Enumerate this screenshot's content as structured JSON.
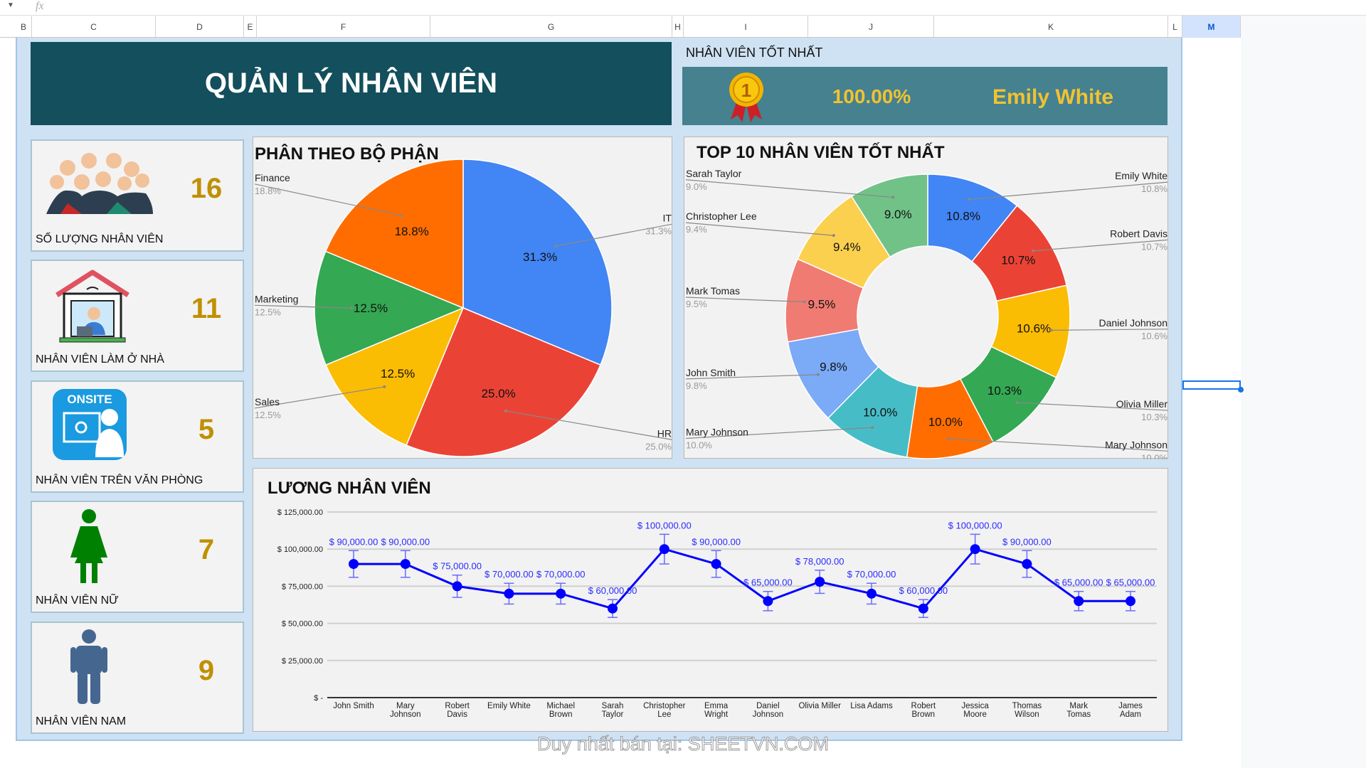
{
  "formula_bar": {
    "fx_label": "fx"
  },
  "columns": [
    "B",
    "C",
    "D",
    "E",
    "F",
    "G",
    "H",
    "I",
    "J",
    "K",
    "L",
    "M"
  ],
  "selected_column": "M",
  "header": {
    "title": "QUẢN LÝ NHÂN VIÊN"
  },
  "best_employee": {
    "label": "NHÂN VIÊN TỐT NHẤT",
    "percent": "100.00%",
    "name": "Emily White",
    "icon": "medal-icon"
  },
  "cards": [
    {
      "value": "16",
      "label": "SỐ LƯỢNG NHÂN VIÊN",
      "icon": "people-group-icon"
    },
    {
      "value": "11",
      "label": "NHÂN VIÊN LÀM Ở NHÀ",
      "icon": "work-from-home-icon"
    },
    {
      "value": "5",
      "label": "NHÂN VIÊN TRÊN VĂN PHÒNG",
      "icon": "onsite-icon",
      "icon_text": "ONSITE"
    },
    {
      "value": "7",
      "label": "NHÂN VIÊN NỮ",
      "icon": "female-icon"
    },
    {
      "value": "9",
      "label": "NHÂN VIÊN NAM",
      "icon": "male-icon"
    }
  ],
  "watermark": "Duy nhất bán tại: SHEETVN.COM",
  "chart_data": [
    {
      "type": "pie",
      "title": "PHÂN THEO BỘ PHẬN",
      "categories": [
        "IT",
        "HR",
        "Sales",
        "Marketing",
        "Finance"
      ],
      "values": [
        31.3,
        25.0,
        12.5,
        12.5,
        18.8
      ],
      "labels": [
        "31.3%",
        "25.0%",
        "12.5%",
        "12.5%",
        "18.8%"
      ],
      "colors": [
        "#4285f4",
        "#ea4335",
        "#fbbc04",
        "#34a853",
        "#ff6d01"
      ],
      "sides": [
        "right",
        "right",
        "left",
        "left",
        "left"
      ]
    },
    {
      "type": "donut",
      "title": "TOP 10 NHÂN VIÊN TỐT NHẤT",
      "categories": [
        "Emily White",
        "Robert Davis",
        "Daniel Johnson",
        "Olivia Miller",
        "Mary Johnson",
        "Mary Johnson",
        "John Smith",
        "Mark Tomas",
        "Christopher Lee",
        "Sarah Taylor"
      ],
      "values": [
        10.8,
        10.7,
        10.6,
        10.3,
        10.0,
        10.0,
        9.8,
        9.5,
        9.4,
        9.0
      ],
      "labels": [
        "10.8%",
        "10.7%",
        "10.6%",
        "10.3%",
        "10.0%",
        "10.0%",
        "9.8%",
        "9.5%",
        "9.4%",
        "9.0%"
      ],
      "colors": [
        "#4285f4",
        "#ea4335",
        "#fbbc04",
        "#34a853",
        "#ff6d01",
        "#46bdc6",
        "#7baaf7",
        "#f07b72",
        "#fcd04f",
        "#71c287"
      ],
      "sides": [
        "right",
        "right",
        "right",
        "right",
        "right",
        "left",
        "left",
        "left",
        "left",
        "left"
      ]
    },
    {
      "type": "line",
      "title": "LƯƠNG NHÂN VIÊN",
      "categories": [
        "John Smith",
        "Mary Johnson",
        "Robert Davis",
        "Emily White",
        "Michael Brown",
        "Sarah Taylor",
        "Christopher Lee",
        "Emma Wright",
        "Daniel Johnson",
        "Olivia Miller",
        "Lisa Adams",
        "Robert Brown",
        "Jessica Moore",
        "Thomas Wilson",
        "Mark Tomas",
        "James Adam"
      ],
      "values": [
        90000,
        90000,
        75000,
        70000,
        70000,
        60000,
        100000,
        90000,
        65000,
        78000,
        70000,
        60000,
        100000,
        90000,
        65000,
        65000
      ],
      "data_labels": [
        "$ 90,000.00",
        "$ 90,000.00",
        "$ 75,000.00",
        "$ 70,000.00",
        "$ 70,000.00",
        "$ 60,000.00",
        "$ 100,000.00",
        "$ 90,000.00",
        "$ 65,000.00",
        "$ 78,000.00",
        "$ 70,000.00",
        "$ 60,000.00",
        "$ 100,000.00",
        "$ 90,000.00",
        "$ 65,000.00",
        "$ 65,000.00"
      ],
      "error_bar_percent": 10,
      "ylim": [
        0,
        125000
      ],
      "yticks": [
        0,
        25000,
        50000,
        75000,
        100000,
        125000
      ],
      "ytick_labels": [
        "$ -",
        "$ 25,000.00",
        "$ 50,000.00",
        "$ 75,000.00",
        "$ 100,000.00",
        "$ 125,000.00"
      ],
      "grid": true,
      "color": "#0000ff"
    }
  ]
}
